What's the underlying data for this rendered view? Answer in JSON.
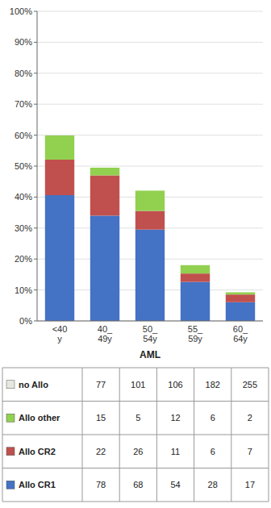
{
  "chart_data": {
    "type": "bar",
    "stacked": true,
    "grid": true,
    "x_label": "AML",
    "categories": [
      "<40\ny",
      "40_\n49y",
      "50_\n54y",
      "55_\n59y",
      "60_\n64y"
    ],
    "series": [
      {
        "color": "#4472c4",
        "values": [
          0.40625,
          0.34,
          0.2950819672,
          0.1261261261,
          0.0604982206
        ]
      },
      {
        "color": "#c0504d",
        "values": [
          0.1145833333,
          0.13,
          0.0601092896,
          0.027027027,
          0.024911032
        ]
      },
      {
        "color": "#92d050",
        "values": [
          0.078125,
          0.025,
          0.0655737705,
          0.027027027,
          0.0071174377
        ]
      }
    ],
    "ylim": [
      0,
      1.0
    ],
    "yticks": [
      {
        "value": 0.0,
        "label": "0%"
      },
      {
        "value": 0.1,
        "label": "10%"
      },
      {
        "value": 0.2,
        "label": "20%"
      },
      {
        "value": 0.3,
        "label": "30%"
      },
      {
        "value": 0.4,
        "label": "40%"
      },
      {
        "value": 0.5,
        "label": "50%"
      },
      {
        "value": 0.6,
        "label": "60%"
      },
      {
        "value": 0.7,
        "label": "70%"
      },
      {
        "value": 0.8,
        "label": "80%"
      },
      {
        "value": 0.9,
        "label": "90%"
      },
      {
        "value": 1.0,
        "label": "100%"
      }
    ],
    "table": {
      "rows": [
        "no Allo",
        "Allo other",
        "Allo CR2",
        "Allo CR1"
      ],
      "colors": [
        "#e8e8e0",
        "#92d050",
        "#c0504d",
        "#4472c4"
      ],
      "values": [
        [
          77,
          101,
          106,
          182,
          255
        ],
        [
          15,
          5,
          12,
          6,
          2
        ],
        [
          22,
          26,
          11,
          6,
          7
        ],
        [
          78,
          68,
          54,
          28,
          17
        ]
      ]
    }
  }
}
